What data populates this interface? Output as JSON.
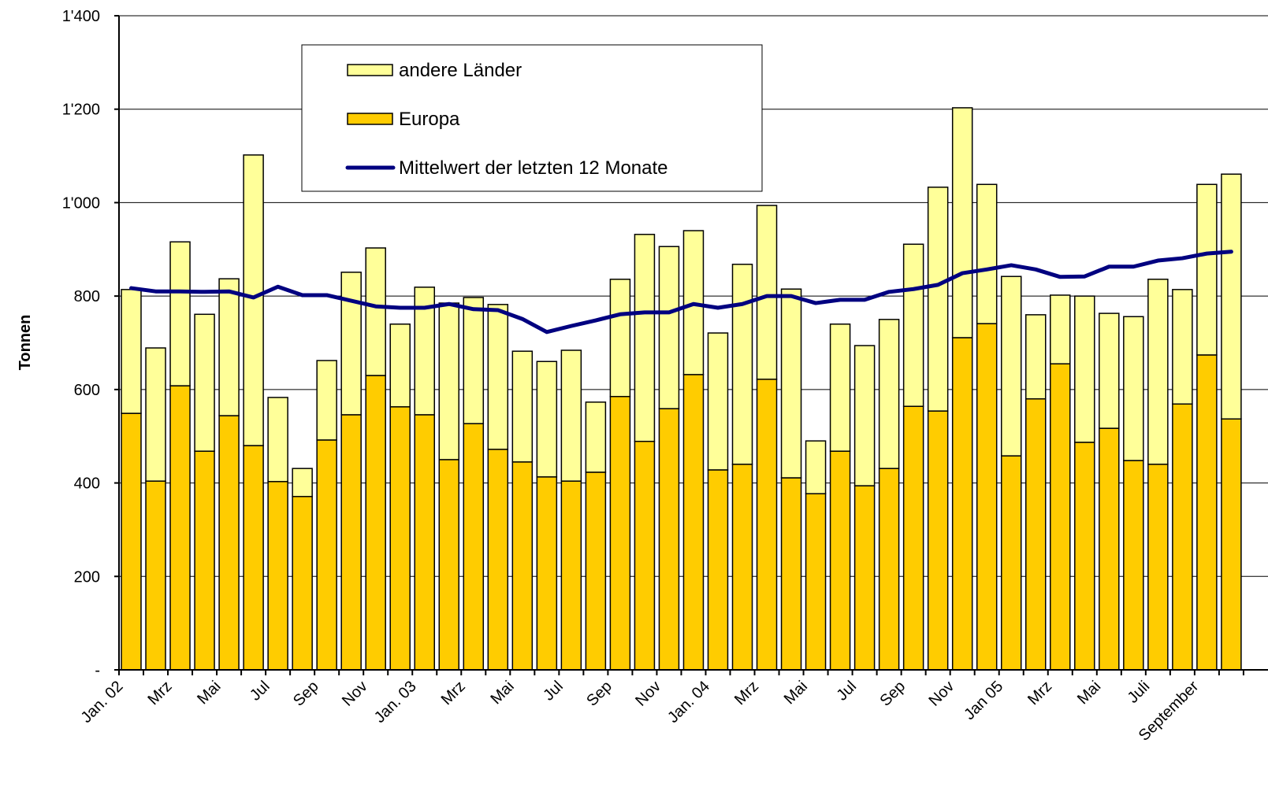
{
  "chart_data": {
    "type": "bar",
    "stacked": true,
    "y_label": "Tonnen",
    "categories": [
      "Jan. 02",
      null,
      "Mrz",
      null,
      "Mai",
      null,
      "Jul",
      null,
      "Sep",
      null,
      "Nov",
      null,
      "Jan. 03",
      null,
      "Mrz",
      null,
      "Mai",
      null,
      "Jul",
      null,
      "Sep",
      null,
      "Nov",
      null,
      "Jan. 04",
      null,
      "Mrz",
      null,
      "Mai",
      null,
      "Jul",
      null,
      "Sep",
      null,
      "Nov",
      null,
      "Jan 05",
      null,
      "Mrz",
      null,
      "Mai",
      null,
      "Juli",
      null,
      "September",
      null
    ],
    "series": [
      {
        "name": "Europa",
        "color": "#ffcc00",
        "values": [
          549,
          404,
          608,
          468,
          544,
          480,
          403,
          371,
          492,
          546,
          630,
          563,
          546,
          450,
          527,
          472,
          445,
          413,
          404,
          423,
          585,
          489,
          559,
          632,
          428,
          440,
          622,
          411,
          377,
          468,
          394,
          431,
          564,
          554,
          711,
          741,
          458,
          580,
          655,
          487,
          517,
          448,
          440,
          569,
          674,
          537
        ]
      },
      {
        "name": "andere Länder",
        "color": "#ffff99",
        "values": [
          265,
          285,
          308,
          293,
          293,
          622,
          180,
          60,
          170,
          305,
          273,
          177,
          273,
          335,
          270,
          310,
          237,
          247,
          280,
          150,
          251,
          443,
          347,
          308,
          293,
          428,
          372,
          404,
          113,
          272,
          300,
          319,
          347,
          479,
          492,
          298,
          384,
          180,
          147,
          313,
          246,
          308,
          396,
          245,
          365,
          524
        ]
      },
      {
        "name": "Mittelwert der letzten 12 Monate",
        "type": "line",
        "color": "#000080",
        "values": [
          817,
          810,
          810,
          809,
          810,
          797,
          820,
          802,
          802,
          790,
          778,
          775,
          775,
          783,
          772,
          770,
          751,
          723,
          736,
          748,
          761,
          765,
          765,
          783,
          775,
          783,
          800,
          800,
          785,
          792,
          792,
          809,
          815,
          824,
          849,
          857,
          866,
          857,
          841,
          842,
          863,
          863,
          876,
          881,
          891,
          895
        ]
      }
    ],
    "ylim": [
      0,
      1400
    ],
    "yticks": [
      {
        "value": 0,
        "label": "-"
      },
      200,
      400,
      600,
      800,
      {
        "value": 1000,
        "label": "1'000"
      },
      {
        "value": 1200,
        "label": "1'200"
      },
      {
        "value": 1400,
        "label": "1'400"
      }
    ],
    "grid": true
  }
}
